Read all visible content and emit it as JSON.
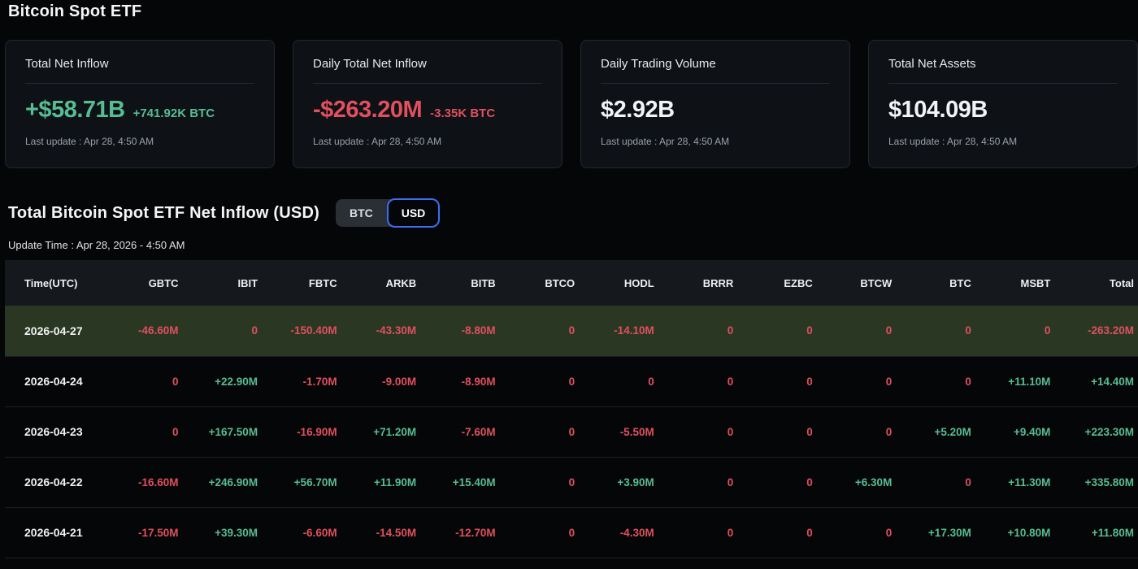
{
  "page": {
    "title": "Bitcoin Spot ETF"
  },
  "colors": {
    "green": "#57bd92",
    "red": "#e0505e",
    "accent_blue": "#3d6ef2",
    "highlight_row": "#2a3722",
    "header_bg": "#15181d"
  },
  "cards": [
    {
      "title": "Total Net Inflow",
      "value": "+$58.71B",
      "sub_value": "+741.92K BTC",
      "value_color": "green",
      "last_update": "Last update : Apr 28, 4:50 AM"
    },
    {
      "title": "Daily Total Net Inflow",
      "value": "-$263.20M",
      "sub_value": "-3.35K BTC",
      "value_color": "red",
      "last_update": "Last update : Apr 28, 4:50 AM"
    },
    {
      "title": "Daily Trading Volume",
      "value": "$2.92B",
      "sub_value": "",
      "value_color": "white",
      "last_update": "Last update : Apr 28, 4:50 AM"
    },
    {
      "title": "Total Net Assets",
      "value": "$104.09B",
      "sub_value": "",
      "value_color": "white",
      "last_update": "Last update : Apr 28, 4:50 AM"
    }
  ],
  "section": {
    "title": "Total Bitcoin Spot ETF Net Inflow (USD)",
    "toggle": {
      "options": [
        "BTC",
        "USD"
      ],
      "selected": "USD"
    },
    "update_time": "Update Time : Apr 28, 2026 - 4:50 AM"
  },
  "table": {
    "columns": [
      "Time(UTC)",
      "GBTC",
      "IBIT",
      "FBTC",
      "ARKB",
      "BITB",
      "BTCO",
      "HODL",
      "BRRR",
      "EZBC",
      "BTCW",
      "BTC",
      "MSBT",
      "Total"
    ],
    "rows": [
      {
        "time": "2026-04-27",
        "highlighted": true,
        "cells": [
          {
            "text": "-46.60M",
            "color": "red"
          },
          {
            "text": "0",
            "color": "red"
          },
          {
            "text": "-150.40M",
            "color": "red"
          },
          {
            "text": "-43.30M",
            "color": "red"
          },
          {
            "text": "-8.80M",
            "color": "red"
          },
          {
            "text": "0",
            "color": "red"
          },
          {
            "text": "-14.10M",
            "color": "red"
          },
          {
            "text": "0",
            "color": "red"
          },
          {
            "text": "0",
            "color": "red"
          },
          {
            "text": "0",
            "color": "red"
          },
          {
            "text": "0",
            "color": "red"
          },
          {
            "text": "0",
            "color": "red"
          },
          {
            "text": "-263.20M",
            "color": "red"
          }
        ]
      },
      {
        "time": "2026-04-24",
        "highlighted": false,
        "cells": [
          {
            "text": "0",
            "color": "red"
          },
          {
            "text": "+22.90M",
            "color": "green"
          },
          {
            "text": "-1.70M",
            "color": "red"
          },
          {
            "text": "-9.00M",
            "color": "red"
          },
          {
            "text": "-8.90M",
            "color": "red"
          },
          {
            "text": "0",
            "color": "red"
          },
          {
            "text": "0",
            "color": "red"
          },
          {
            "text": "0",
            "color": "red"
          },
          {
            "text": "0",
            "color": "red"
          },
          {
            "text": "0",
            "color": "red"
          },
          {
            "text": "0",
            "color": "red"
          },
          {
            "text": "+11.10M",
            "color": "green"
          },
          {
            "text": "+14.40M",
            "color": "green"
          }
        ]
      },
      {
        "time": "2026-04-23",
        "highlighted": false,
        "cells": [
          {
            "text": "0",
            "color": "red"
          },
          {
            "text": "+167.50M",
            "color": "green"
          },
          {
            "text": "-16.90M",
            "color": "red"
          },
          {
            "text": "+71.20M",
            "color": "green"
          },
          {
            "text": "-7.60M",
            "color": "red"
          },
          {
            "text": "0",
            "color": "red"
          },
          {
            "text": "-5.50M",
            "color": "red"
          },
          {
            "text": "0",
            "color": "red"
          },
          {
            "text": "0",
            "color": "red"
          },
          {
            "text": "0",
            "color": "red"
          },
          {
            "text": "+5.20M",
            "color": "green"
          },
          {
            "text": "+9.40M",
            "color": "green"
          },
          {
            "text": "+223.30M",
            "color": "green"
          }
        ]
      },
      {
        "time": "2026-04-22",
        "highlighted": false,
        "cells": [
          {
            "text": "-16.60M",
            "color": "red"
          },
          {
            "text": "+246.90M",
            "color": "green"
          },
          {
            "text": "+56.70M",
            "color": "green"
          },
          {
            "text": "+11.90M",
            "color": "green"
          },
          {
            "text": "+15.40M",
            "color": "green"
          },
          {
            "text": "0",
            "color": "red"
          },
          {
            "text": "+3.90M",
            "color": "green"
          },
          {
            "text": "0",
            "color": "red"
          },
          {
            "text": "0",
            "color": "red"
          },
          {
            "text": "+6.30M",
            "color": "green"
          },
          {
            "text": "0",
            "color": "red"
          },
          {
            "text": "+11.30M",
            "color": "green"
          },
          {
            "text": "+335.80M",
            "color": "green"
          }
        ]
      },
      {
        "time": "2026-04-21",
        "highlighted": false,
        "cells": [
          {
            "text": "-17.50M",
            "color": "red"
          },
          {
            "text": "+39.30M",
            "color": "green"
          },
          {
            "text": "-6.60M",
            "color": "red"
          },
          {
            "text": "-14.50M",
            "color": "red"
          },
          {
            "text": "-12.70M",
            "color": "red"
          },
          {
            "text": "0",
            "color": "red"
          },
          {
            "text": "-4.30M",
            "color": "red"
          },
          {
            "text": "0",
            "color": "red"
          },
          {
            "text": "0",
            "color": "red"
          },
          {
            "text": "0",
            "color": "red"
          },
          {
            "text": "+17.30M",
            "color": "green"
          },
          {
            "text": "+10.80M",
            "color": "green"
          },
          {
            "text": "+11.80M",
            "color": "green"
          }
        ]
      }
    ]
  }
}
